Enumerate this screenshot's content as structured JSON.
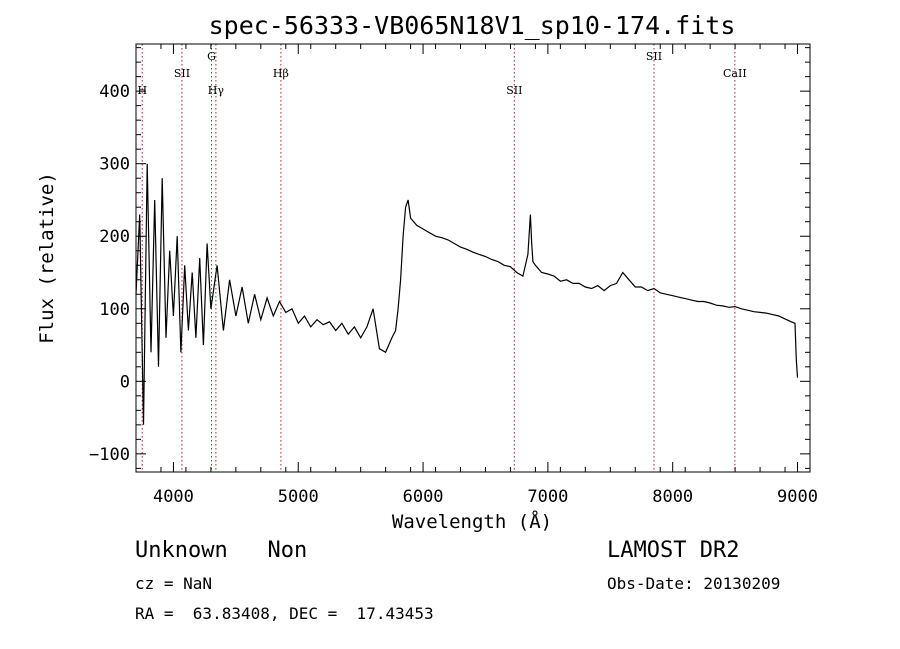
{
  "chart_data": {
    "type": "line",
    "title": "spec-56333-VB065N18V1_sp10-174.fits",
    "xlabel": "Wavelength (Å)",
    "ylabel": "Flux (relative)",
    "xlim": [
      3700,
      9100
    ],
    "ylim": [
      -125,
      465
    ],
    "xticks": [
      4000,
      5000,
      6000,
      7000,
      8000,
      9000
    ],
    "yticks": [
      -100,
      0,
      100,
      200,
      300,
      400
    ],
    "grid": false,
    "line_color": "#000000",
    "marker_color": "#b22222",
    "spectral_lines": [
      {
        "name": "H",
        "x": 3750,
        "row": 3
      },
      {
        "name": "SII",
        "x": 4068,
        "row": 2
      },
      {
        "name": "G",
        "x": 4305,
        "row": 1
      },
      {
        "name": "Hγ",
        "x": 4340,
        "row": 3
      },
      {
        "name": "Hβ",
        "x": 4861,
        "row": 2
      },
      {
        "name": "SII",
        "x": 6731,
        "row": 3
      },
      {
        "name": "SII",
        "x": 7850,
        "row": 1
      },
      {
        "name": "CaII",
        "x": 8498,
        "row": 2
      }
    ],
    "series": [
      {
        "x": [
          3700,
          3730,
          3760,
          3790,
          3820,
          3850,
          3880,
          3910,
          3940,
          3970,
          4000,
          4030,
          4060,
          4090,
          4120,
          4150,
          4180,
          4210,
          4240,
          4270,
          4300,
          4350,
          4400,
          4450,
          4500,
          4550,
          4600,
          4650,
          4700,
          4750,
          4800,
          4850,
          4900,
          4950,
          5000,
          5050,
          5100,
          5150,
          5200,
          5250,
          5300,
          5350,
          5400,
          5450,
          5500,
          5550,
          5600,
          5650,
          5700,
          5750,
          5780,
          5800,
          5820,
          5840,
          5860,
          5880,
          5900,
          5950,
          6000,
          6050,
          6100,
          6150,
          6200,
          6250,
          6300,
          6350,
          6400,
          6450,
          6500,
          6550,
          6600,
          6650,
          6700,
          6750,
          6800,
          6840,
          6860,
          6870,
          6880,
          6900,
          6950,
          7000,
          7050,
          7100,
          7150,
          7200,
          7250,
          7300,
          7350,
          7400,
          7450,
          7500,
          7550,
          7600,
          7650,
          7700,
          7750,
          7800,
          7850,
          7900,
          7950,
          8000,
          8050,
          8100,
          8150,
          8200,
          8250,
          8300,
          8350,
          8400,
          8450,
          8500,
          8550,
          8600,
          8650,
          8700,
          8750,
          8800,
          8850,
          8900,
          8950,
          8980,
          8990,
          9000
        ],
        "y": [
          120,
          230,
          -60,
          300,
          40,
          250,
          20,
          280,
          60,
          180,
          90,
          200,
          40,
          160,
          70,
          150,
          60,
          170,
          50,
          190,
          100,
          160,
          70,
          140,
          90,
          130,
          80,
          120,
          85,
          115,
          90,
          110,
          95,
          100,
          80,
          90,
          75,
          85,
          78,
          82,
          70,
          80,
          65,
          75,
          60,
          75,
          100,
          45,
          40,
          60,
          70,
          100,
          140,
          200,
          240,
          250,
          225,
          215,
          210,
          205,
          200,
          198,
          195,
          190,
          185,
          182,
          178,
          175,
          172,
          168,
          165,
          160,
          158,
          150,
          145,
          175,
          230,
          190,
          165,
          160,
          150,
          148,
          145,
          138,
          140,
          135,
          135,
          130,
          128,
          132,
          125,
          132,
          135,
          150,
          140,
          130,
          130,
          125,
          128,
          122,
          120,
          118,
          116,
          114,
          112,
          110,
          110,
          108,
          105,
          104,
          102,
          103,
          100,
          98,
          96,
          95,
          94,
          92,
          90,
          86,
          82,
          80,
          30,
          5
        ]
      }
    ]
  },
  "info": {
    "class_line": "Unknown   Non",
    "survey": "LAMOST DR2",
    "cz": "cz = NaN",
    "obs_date": "Obs-Date: 20130209",
    "radec": "RA =  63.83408, DEC =  17.43453"
  }
}
